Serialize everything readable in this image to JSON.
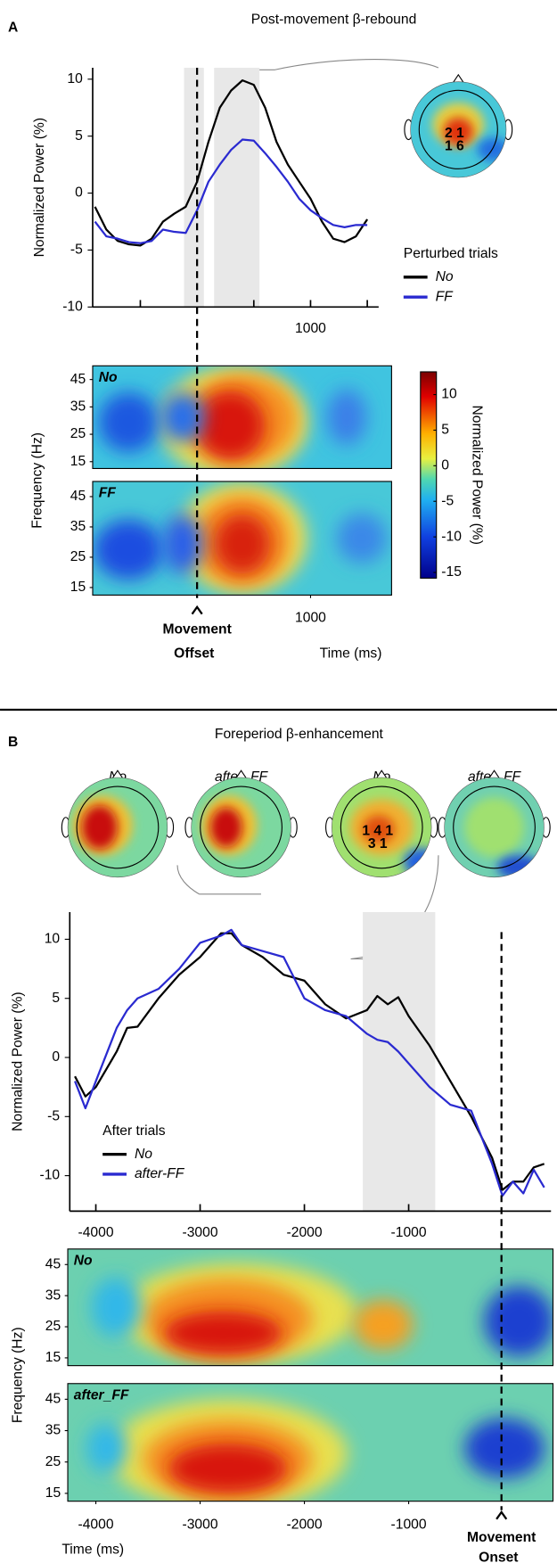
{
  "chart_data": [
    {
      "type": "line",
      "panel_label": "A",
      "title": "Post-movement β-rebound",
      "ylabel": "Normalized Power (%)",
      "x": [
        -900,
        -800,
        -700,
        -600,
        -500,
        -400,
        -300,
        -200,
        -100,
        0,
        100,
        200,
        300,
        400,
        500,
        600,
        700,
        800,
        900,
        1000,
        1100,
        1200,
        1300,
        1400,
        1500
      ],
      "xlim": [
        -920,
        1600
      ],
      "ylim": [
        -10,
        11
      ],
      "xticks": [
        {
          "value": -500,
          "label": null
        },
        {
          "value": 500,
          "label": null
        },
        1000,
        {
          "value": 1500,
          "label": null
        }
      ],
      "yticks": [
        -10,
        -5,
        0,
        5,
        10
      ],
      "series": [
        {
          "name": "No",
          "color": "#000000",
          "values": [
            -1.2,
            -3.2,
            -4.2,
            -4.5,
            -4.6,
            -4.0,
            -2.5,
            -1.8,
            -1.2,
            1.0,
            4.5,
            7.5,
            9.0,
            9.9,
            9.5,
            7.5,
            4.5,
            2.5,
            1.0,
            -0.5,
            -2.5,
            -4.0,
            -4.3,
            -3.8,
            -2.3
          ]
        },
        {
          "name": "FF",
          "color": "#2a2ad0",
          "values": [
            -2.5,
            -3.8,
            -4.0,
            -4.3,
            -4.4,
            -4.2,
            -3.2,
            -3.4,
            -3.5,
            -1.5,
            1.0,
            2.5,
            3.8,
            4.7,
            4.6,
            3.5,
            2.3,
            1.0,
            -0.5,
            -1.5,
            -2.2,
            -2.8,
            -3.0,
            -2.8,
            -2.8
          ]
        }
      ],
      "legend_title": "Perturbed trials",
      "shaded_intervals": [
        [
          -115,
          60
        ],
        [
          150,
          550
        ]
      ],
      "event_x": 0,
      "event_label": [
        "Movement",
        "Offset"
      ],
      "xlabel": "Time (ms)",
      "topoplots": [
        {
          "electrode_labels": [
            "2 1",
            "1 6"
          ]
        }
      ],
      "heatmap_ylabel": "Frequency (Hz)",
      "heatmap_xticks": [
        1000
      ],
      "heatmaps": [
        {
          "label": "No",
          "ylim": [
            12.5,
            50
          ],
          "yticks": [
            15,
            25,
            35,
            45
          ]
        },
        {
          "label": "FF",
          "ylim": [
            12.5,
            50
          ],
          "yticks": [
            15,
            25,
            35,
            45
          ]
        }
      ],
      "colorbar": {
        "label": "Normalized Power (%)",
        "clim": [
          -15.8,
          13.2
        ],
        "ticks": [
          -15,
          -10,
          -5,
          0,
          5,
          10
        ]
      }
    },
    {
      "type": "line",
      "panel_label": "B",
      "title": "Foreperiod β-enhancement",
      "ylabel": "Normalized Power (%)",
      "x": [
        -4200,
        -4100,
        -4000,
        -3800,
        -3700,
        -3600,
        -3400,
        -3200,
        -3000,
        -2800,
        -2700,
        -2600,
        -2400,
        -2200,
        -2000,
        -1800,
        -1600,
        -1400,
        -1300,
        -1200,
        -1100,
        -1000,
        -800,
        -600,
        -400,
        -200,
        -100,
        0,
        100,
        200,
        300
      ],
      "xlim": [
        -4250,
        365
      ],
      "ylim": [
        -13,
        12.3
      ],
      "xticks": [
        -4000,
        -3000,
        -2000,
        -1000
      ],
      "yticks": [
        -10,
        -5,
        0,
        5,
        10
      ],
      "series": [
        {
          "name": "No",
          "color": "#000000",
          "values": [
            -1.6,
            -3.3,
            -2.5,
            0.5,
            2.5,
            2.6,
            5.0,
            7.0,
            8.5,
            10.5,
            10.5,
            9.5,
            8.5,
            7.0,
            6.5,
            4.5,
            3.3,
            4.0,
            5.2,
            4.5,
            5.1,
            3.5,
            1.0,
            -2.0,
            -5.0,
            -8.5,
            -11.2,
            -10.5,
            -10.5,
            -9.3,
            -9.0
          ]
        },
        {
          "name": "after-FF",
          "color": "#2a2ad0",
          "values": [
            -2.0,
            -4.3,
            -2.0,
            2.5,
            4.0,
            5.0,
            5.8,
            7.5,
            9.7,
            10.3,
            10.8,
            9.5,
            9.0,
            8.5,
            5.0,
            4.0,
            3.5,
            2.0,
            1.5,
            1.3,
            0.5,
            -0.5,
            -2.5,
            -4.0,
            -4.5,
            -9.0,
            -11.7,
            -10.5,
            -11.5,
            -9.5,
            -11.0
          ]
        }
      ],
      "legend_title": "After trials",
      "shaded_intervals": [
        [
          -1440,
          -745
        ]
      ],
      "event_x": -110,
      "event_label": [
        "Movement",
        "Onset"
      ],
      "xlabel": "Time (ms)",
      "topoplots": [
        {
          "title": "No"
        },
        {
          "title": "after_FF"
        },
        {
          "title": "No",
          "electrode_labels": [
            "1 4 1",
            "3 1"
          ]
        },
        {
          "title": "after_FF"
        }
      ],
      "heatmap_ylabel": "Frequency (Hz)",
      "heatmap_xticks": [
        -4000,
        -3000,
        -2000,
        -1000
      ],
      "heatmaps": [
        {
          "label": "No",
          "ylim": [
            12.5,
            50
          ],
          "yticks": [
            15,
            25,
            35,
            45
          ]
        },
        {
          "label": "after_FF",
          "ylim": [
            12.5,
            50
          ],
          "yticks": [
            15,
            25,
            35,
            45
          ]
        }
      ]
    }
  ]
}
